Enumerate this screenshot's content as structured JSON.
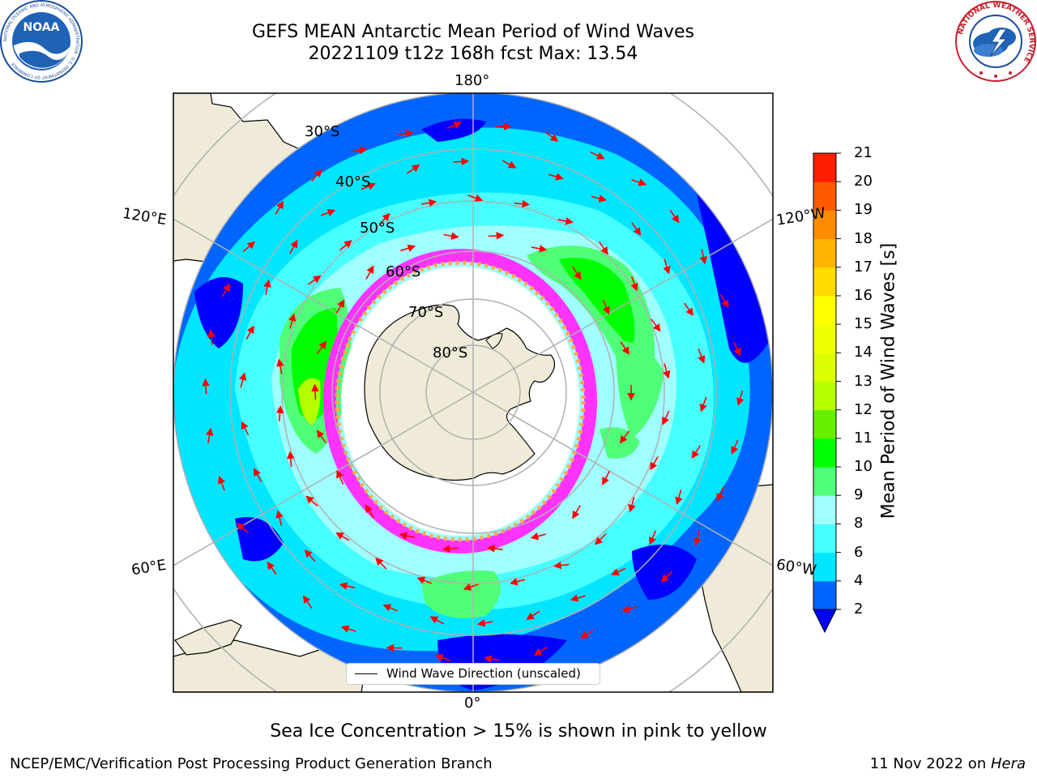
{
  "title": {
    "line1": "GEFS MEAN Antarctic Mean Period of Wind Waves",
    "line2": "20221109 t12z 168h fcst   Max: 13.54"
  },
  "logos": {
    "noaa_text": "NOAA",
    "noaa_ring": "NATIONAL OCEANIC AND ATMOSPHERIC ADMINISTRATION · U.S. DEPARTMENT OF COMMERCE",
    "nws_text": "NATIONAL WEATHER SERVICE"
  },
  "map": {
    "projection": "south-polar-stereographic",
    "lon_labels": {
      "top": "180°",
      "bottom": "0°",
      "left_upper": "120°E",
      "left_lower": "60°E",
      "right_upper": "120°W",
      "right_lower": "60°W"
    },
    "lat_labels": [
      "30°S",
      "40°S",
      "50°S",
      "60°S",
      "70°S",
      "80°S"
    ],
    "legend_label": "Wind Wave Direction (unscaled)",
    "arrow_color": "#ff0000",
    "land_color": "#efebd8",
    "sea_ice_colors": [
      "#ff33ff",
      "#ffaa44",
      "#ffee55"
    ]
  },
  "colorbar": {
    "label": "Mean Period of Wind Waves [s]",
    "ticks": [
      "2",
      "4",
      "6",
      "8",
      "9",
      "10",
      "11",
      "12",
      "13",
      "14",
      "15",
      "16",
      "17",
      "18",
      "19",
      "20",
      "21"
    ],
    "colors": [
      "#0065ff",
      "#00e6ff",
      "#48ffff",
      "#a0ffff",
      "#50ff78",
      "#00ff00",
      "#64f000",
      "#b4ff00",
      "#dcff00",
      "#f0ff00",
      "#ffff00",
      "#ffdc00",
      "#ffb400",
      "#ff8c00",
      "#ff5a00",
      "#ff1e00"
    ],
    "under_color": "#0000ff"
  },
  "footer": {
    "note": "Sea Ice Concentration > 15% is shown in pink to yellow",
    "credit": "NCEP/EMC/Verification Post Processing Product Generation Branch",
    "date_prefix": "11 Nov 2022 on ",
    "date_machine": "Hera"
  }
}
